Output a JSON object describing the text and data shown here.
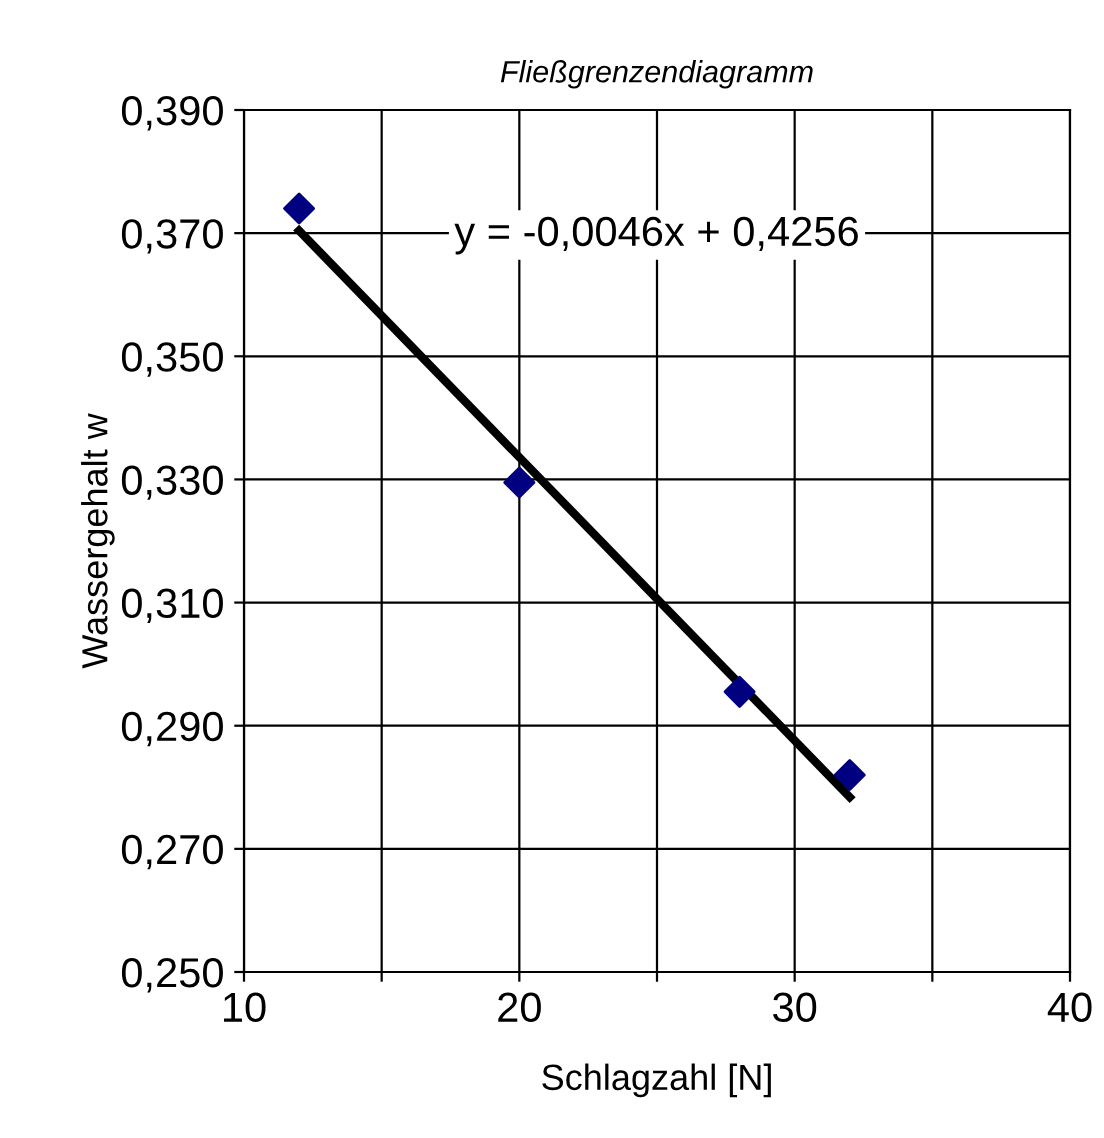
{
  "chart_data": {
    "type": "scatter",
    "title": "Fließgrenzendiagramm",
    "xlabel": "Schlagzahl [N]",
    "ylabel": "Wassergehalt w",
    "series": [
      {
        "color": "#000080",
        "x": [
          12,
          20,
          28,
          32
        ],
        "values": [
          0.374,
          0.3295,
          0.2955,
          0.282
        ],
        "marker": "diamond"
      },
      {
        "type": "line",
        "color": "#000000",
        "x": [
          12,
          32
        ],
        "values": [
          0.3704,
          0.2784
        ],
        "marker": "none"
      }
    ],
    "annotations": [
      "y = -0,0046x + 0,4256"
    ],
    "xlim": [
      10,
      40
    ],
    "ylim": [
      0.25,
      0.39
    ],
    "xticks": [
      10,
      {
        "value": 15,
        "label": null
      },
      20,
      {
        "value": 25,
        "label": null
      },
      30,
      {
        "value": 35,
        "label": null
      },
      40
    ],
    "yticks": [
      {
        "value": 0.25,
        "label": "0,250"
      },
      {
        "value": 0.27,
        "label": "0,270"
      },
      {
        "value": 0.29,
        "label": "0,290"
      },
      {
        "value": 0.31,
        "label": "0,310"
      },
      {
        "value": 0.33,
        "label": "0,330"
      },
      {
        "value": 0.35,
        "label": "0,350"
      },
      {
        "value": 0.37,
        "label": "0,370"
      },
      {
        "value": 0.39,
        "label": "0,390"
      }
    ],
    "grid": true,
    "legend": false
  }
}
